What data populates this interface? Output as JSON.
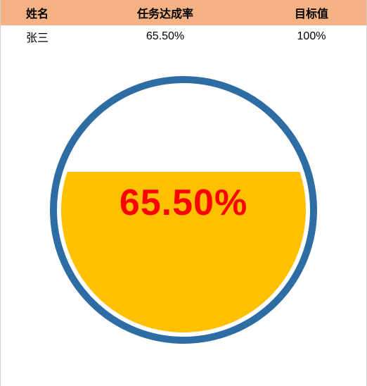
{
  "table": {
    "header_bg": "#f4b183",
    "columns": [
      "姓名",
      "任务达成率",
      "目标值"
    ],
    "rows": [
      [
        "张三",
        "65.50%",
        "100%"
      ]
    ],
    "header_fontsize": 16,
    "cell_fontsize": 16,
    "header_color": "#000000",
    "cell_color": "#000000"
  },
  "gauge": {
    "type": "radial-fill-gauge",
    "value": 65.5,
    "max": 100,
    "display_text": "65.50%",
    "diameter": 380,
    "outer_ring_color": "#2e6ca4",
    "outer_ring_width": 10,
    "inner_gap_color": "#ffffff",
    "inner_gap_width": 6,
    "fill_color": "#ffc000",
    "empty_color": "#ffffff",
    "text_color": "#ff0000",
    "text_fontsize": 52,
    "text_fontweight": 900,
    "text_top_offset": 150,
    "background_color": "#ffffff"
  }
}
